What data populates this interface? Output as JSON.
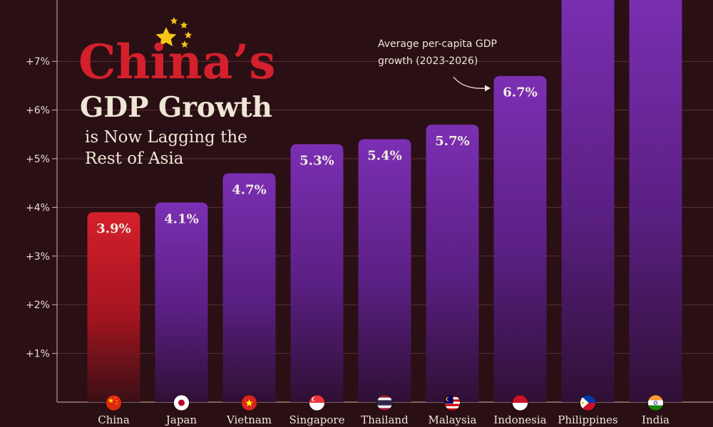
{
  "chart_data": {
    "type": "bar",
    "title_line1": "China’s",
    "title_line2": "GDP Growth",
    "subtitle_line1": "is Now Lagging the",
    "subtitle_line2": "Rest of Asia",
    "annotation_line1": "Average per-capita GDP",
    "annotation_line2": "growth (2023-2026)",
    "ylim": [
      0,
      8
    ],
    "y_ticks": [
      {
        "value": 1,
        "label": "+1%"
      },
      {
        "value": 2,
        "label": "+2%"
      },
      {
        "value": 3,
        "label": "+3%"
      },
      {
        "value": 4,
        "label": "+4%"
      },
      {
        "value": 5,
        "label": "+5%"
      },
      {
        "value": 6,
        "label": "+6%"
      },
      {
        "value": 7,
        "label": "+7%"
      }
    ],
    "categories": [
      "China",
      "Japan",
      "Vietnam",
      "Singapore",
      "Thailand",
      "Malaysia",
      "Indonesia",
      "Philippines",
      "India"
    ],
    "values": [
      3.9,
      4.1,
      4.7,
      5.3,
      5.4,
      5.7,
      6.7,
      8.5,
      8.5
    ],
    "value_labels": [
      "3.9%",
      "4.1%",
      "4.7%",
      "5.3%",
      "5.4%",
      "5.7%",
      "6.7%",
      "",
      ""
    ],
    "colors": {
      "background": "#2a0f14",
      "highlight_top": "#d4202c",
      "highlight_bottom": "#3a0f16",
      "bar_top": "#7b2fb3",
      "bar_bottom": "#2f1035",
      "title_red": "#d4202c",
      "title_cream": "#efe6d6",
      "axis_text": "#e9ddd2",
      "star": "#f5c518"
    }
  }
}
